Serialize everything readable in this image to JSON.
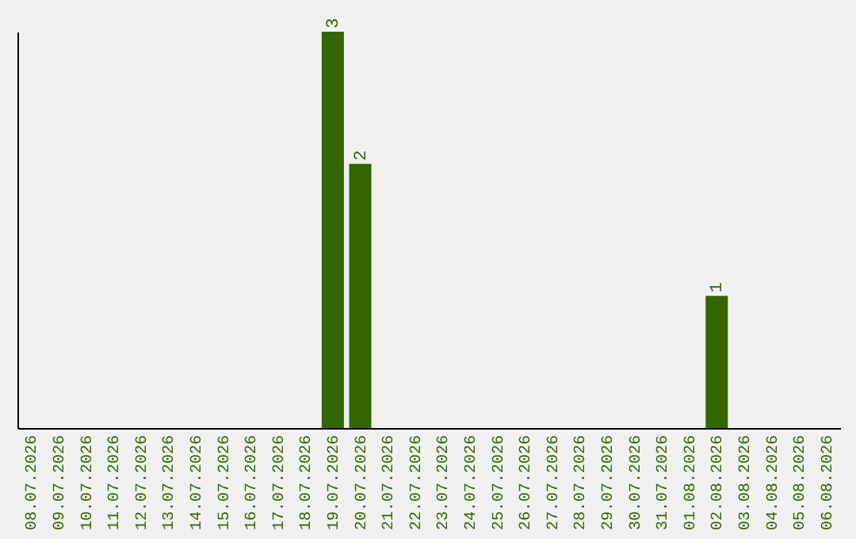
{
  "chart_data": {
    "type": "bar",
    "categories": [
      "08.07.2026",
      "09.07.2026",
      "10.07.2026",
      "11.07.2026",
      "12.07.2026",
      "13.07.2026",
      "14.07.2026",
      "15.07.2026",
      "16.07.2026",
      "17.07.2026",
      "18.07.2026",
      "19.07.2026",
      "20.07.2026",
      "21.07.2026",
      "22.07.2026",
      "23.07.2026",
      "24.07.2026",
      "25.07.2026",
      "26.07.2026",
      "27.07.2026",
      "28.07.2026",
      "29.07.2026",
      "30.07.2026",
      "31.07.2026",
      "01.08.2026",
      "02.08.2026",
      "03.08.2026",
      "04.08.2026",
      "05.08.2026",
      "06.08.2026"
    ],
    "values": [
      0,
      0,
      0,
      0,
      0,
      0,
      0,
      0,
      0,
      0,
      0,
      3,
      2,
      0,
      0,
      0,
      0,
      0,
      0,
      0,
      0,
      0,
      0,
      0,
      0,
      1,
      0,
      0,
      0,
      0
    ],
    "value_labels": [
      null,
      null,
      null,
      null,
      null,
      null,
      null,
      null,
      null,
      null,
      null,
      "3",
      "2",
      null,
      null,
      null,
      null,
      null,
      null,
      null,
      null,
      null,
      null,
      null,
      null,
      "1",
      null,
      null,
      null,
      null
    ],
    "color": "#336600",
    "tick_labels": "x"
  }
}
